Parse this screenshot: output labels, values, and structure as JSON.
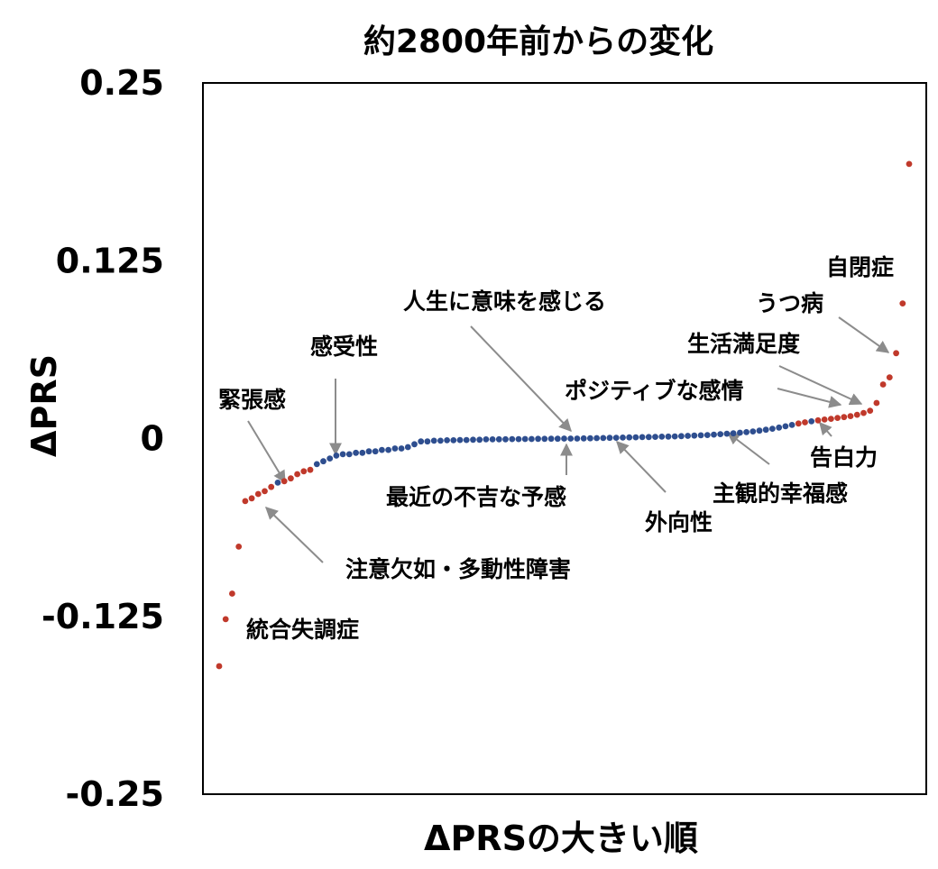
{
  "chart_data": {
    "type": "scatter",
    "title": "約2800年前からの変化",
    "xlabel": "ΔPRSの大きい順",
    "ylabel": "ΔPRS",
    "ylim": [
      -0.25,
      0.25
    ],
    "yticks": [
      {
        "value": 0.25,
        "label": "0.25"
      },
      {
        "value": 0.125,
        "label": "0.125"
      },
      {
        "value": 0,
        "label": "0"
      },
      {
        "value": -0.125,
        "label": "-0.125"
      },
      {
        "value": -0.25,
        "label": "-0.25"
      }
    ],
    "colors": {
      "significant": "#c0392b",
      "nonsignificant": "#2e4e8f",
      "arrow": "#8c8c8c"
    },
    "points_rank_order": [
      {
        "y": -0.16,
        "significant": true
      },
      {
        "y": -0.127,
        "significant": true
      },
      {
        "y": -0.109,
        "significant": true
      },
      {
        "y": -0.076,
        "significant": true
      },
      {
        "y": -0.044,
        "significant": true
      },
      {
        "y": -0.042,
        "significant": true
      },
      {
        "y": -0.039,
        "significant": true
      },
      {
        "y": -0.037,
        "significant": true
      },
      {
        "y": -0.034,
        "significant": true
      },
      {
        "y": -0.031,
        "significant": false
      },
      {
        "y": -0.03,
        "significant": true
      },
      {
        "y": -0.028,
        "significant": true
      },
      {
        "y": -0.025,
        "significant": true
      },
      {
        "y": -0.023,
        "significant": true
      },
      {
        "y": -0.022,
        "significant": true
      },
      {
        "y": -0.018,
        "significant": false
      },
      {
        "y": -0.016,
        "significant": false
      },
      {
        "y": -0.014,
        "significant": false
      },
      {
        "y": -0.012,
        "significant": false
      },
      {
        "y": -0.011,
        "significant": false
      },
      {
        "y": -0.011,
        "significant": false
      },
      {
        "y": -0.01,
        "significant": false
      },
      {
        "y": -0.01,
        "significant": false
      },
      {
        "y": -0.009,
        "significant": false
      },
      {
        "y": -0.009,
        "significant": false
      },
      {
        "y": -0.008,
        "significant": false
      },
      {
        "y": -0.008,
        "significant": false
      },
      {
        "y": -0.007,
        "significant": false
      },
      {
        "y": -0.007,
        "significant": false
      },
      {
        "y": -0.006,
        "significant": false
      },
      {
        "y": -0.004,
        "significant": false
      },
      {
        "y": -0.002,
        "significant": false
      },
      {
        "y": -0.002,
        "significant": false
      },
      {
        "y": -0.0015,
        "significant": false
      },
      {
        "y": -0.0015,
        "significant": false
      },
      {
        "y": -0.0012,
        "significant": false
      },
      {
        "y": -0.0012,
        "significant": false
      },
      {
        "y": -0.001,
        "significant": false
      },
      {
        "y": -0.001,
        "significant": false
      },
      {
        "y": -0.0008,
        "significant": false
      },
      {
        "y": -0.0008,
        "significant": false
      },
      {
        "y": -0.0006,
        "significant": false
      },
      {
        "y": -0.0006,
        "significant": false
      },
      {
        "y": -0.0005,
        "significant": false
      },
      {
        "y": -0.0005,
        "significant": false
      },
      {
        "y": -0.0004,
        "significant": false
      },
      {
        "y": -0.0004,
        "significant": false
      },
      {
        "y": -0.0003,
        "significant": false
      },
      {
        "y": -0.0003,
        "significant": false
      },
      {
        "y": -0.0002,
        "significant": false
      },
      {
        "y": -0.0002,
        "significant": false
      },
      {
        "y": -0.0001,
        "significant": false
      },
      {
        "y": -0.0001,
        "significant": false
      },
      {
        "y": 0.0,
        "significant": false
      },
      {
        "y": 0.0,
        "significant": false
      },
      {
        "y": 0.0,
        "significant": false
      },
      {
        "y": 0.0001,
        "significant": false
      },
      {
        "y": 0.0002,
        "significant": false
      },
      {
        "y": 0.0003,
        "significant": false
      },
      {
        "y": 0.0004,
        "significant": false
      },
      {
        "y": 0.0005,
        "significant": false
      },
      {
        "y": 0.0006,
        "significant": false
      },
      {
        "y": 0.0007,
        "significant": false
      },
      {
        "y": 0.0008,
        "significant": false
      },
      {
        "y": 0.0009,
        "significant": false
      },
      {
        "y": 0.001,
        "significant": false
      },
      {
        "y": 0.0011,
        "significant": false
      },
      {
        "y": 0.0012,
        "significant": false
      },
      {
        "y": 0.0013,
        "significant": false
      },
      {
        "y": 0.0014,
        "significant": false
      },
      {
        "y": 0.0015,
        "significant": false
      },
      {
        "y": 0.0017,
        "significant": false
      },
      {
        "y": 0.0019,
        "significant": false
      },
      {
        "y": 0.0021,
        "significant": false
      },
      {
        "y": 0.0023,
        "significant": false
      },
      {
        "y": 0.0025,
        "significant": false
      },
      {
        "y": 0.0028,
        "significant": false
      },
      {
        "y": 0.0031,
        "significant": false
      },
      {
        "y": 0.0034,
        "significant": false
      },
      {
        "y": 0.0037,
        "significant": false
      },
      {
        "y": 0.0041,
        "significant": false
      },
      {
        "y": 0.0045,
        "significant": false
      },
      {
        "y": 0.005,
        "significant": false
      },
      {
        "y": 0.0056,
        "significant": false
      },
      {
        "y": 0.0062,
        "significant": false
      },
      {
        "y": 0.0069,
        "significant": false
      },
      {
        "y": 0.0077,
        "significant": false
      },
      {
        "y": 0.0086,
        "significant": false
      },
      {
        "y": 0.0096,
        "significant": false
      },
      {
        "y": 0.0106,
        "significant": true
      },
      {
        "y": 0.0114,
        "significant": true
      },
      {
        "y": 0.0121,
        "significant": false
      },
      {
        "y": 0.0128,
        "significant": true
      },
      {
        "y": 0.0134,
        "significant": true
      },
      {
        "y": 0.0139,
        "significant": true
      },
      {
        "y": 0.0145,
        "significant": true
      },
      {
        "y": 0.0151,
        "significant": true
      },
      {
        "y": 0.0158,
        "significant": true
      },
      {
        "y": 0.0167,
        "significant": true
      },
      {
        "y": 0.018,
        "significant": true
      },
      {
        "y": 0.0196,
        "significant": true
      },
      {
        "y": 0.025,
        "significant": true
      },
      {
        "y": 0.038,
        "significant": true
      },
      {
        "y": 0.043,
        "significant": true
      },
      {
        "y": 0.06,
        "significant": true
      },
      {
        "y": 0.095,
        "significant": true
      },
      {
        "y": 0.193,
        "significant": true
      }
    ],
    "annotations": [
      {
        "label": "統合失調症",
        "rank": 0
      },
      {
        "label": "注意欠如・多動性障害",
        "rank": 4
      },
      {
        "label": "緊張感",
        "rank": 9
      },
      {
        "label": "感受性",
        "rank": 15
      },
      {
        "label": "最近の不吉な予感",
        "rank": 53
      },
      {
        "label": "人生に意味を感じる",
        "rank": 53
      },
      {
        "label": "外向性",
        "rank": 62
      },
      {
        "label": "主観的幸福感",
        "rank": 84
      },
      {
        "label": "告白力",
        "rank": 94
      },
      {
        "label": "ポジティブな感情",
        "rank": 98
      },
      {
        "label": "生活満足度",
        "rank": 100
      },
      {
        "label": "うつ病",
        "rank": 104
      },
      {
        "label": "自閉症",
        "rank": 104
      }
    ]
  }
}
